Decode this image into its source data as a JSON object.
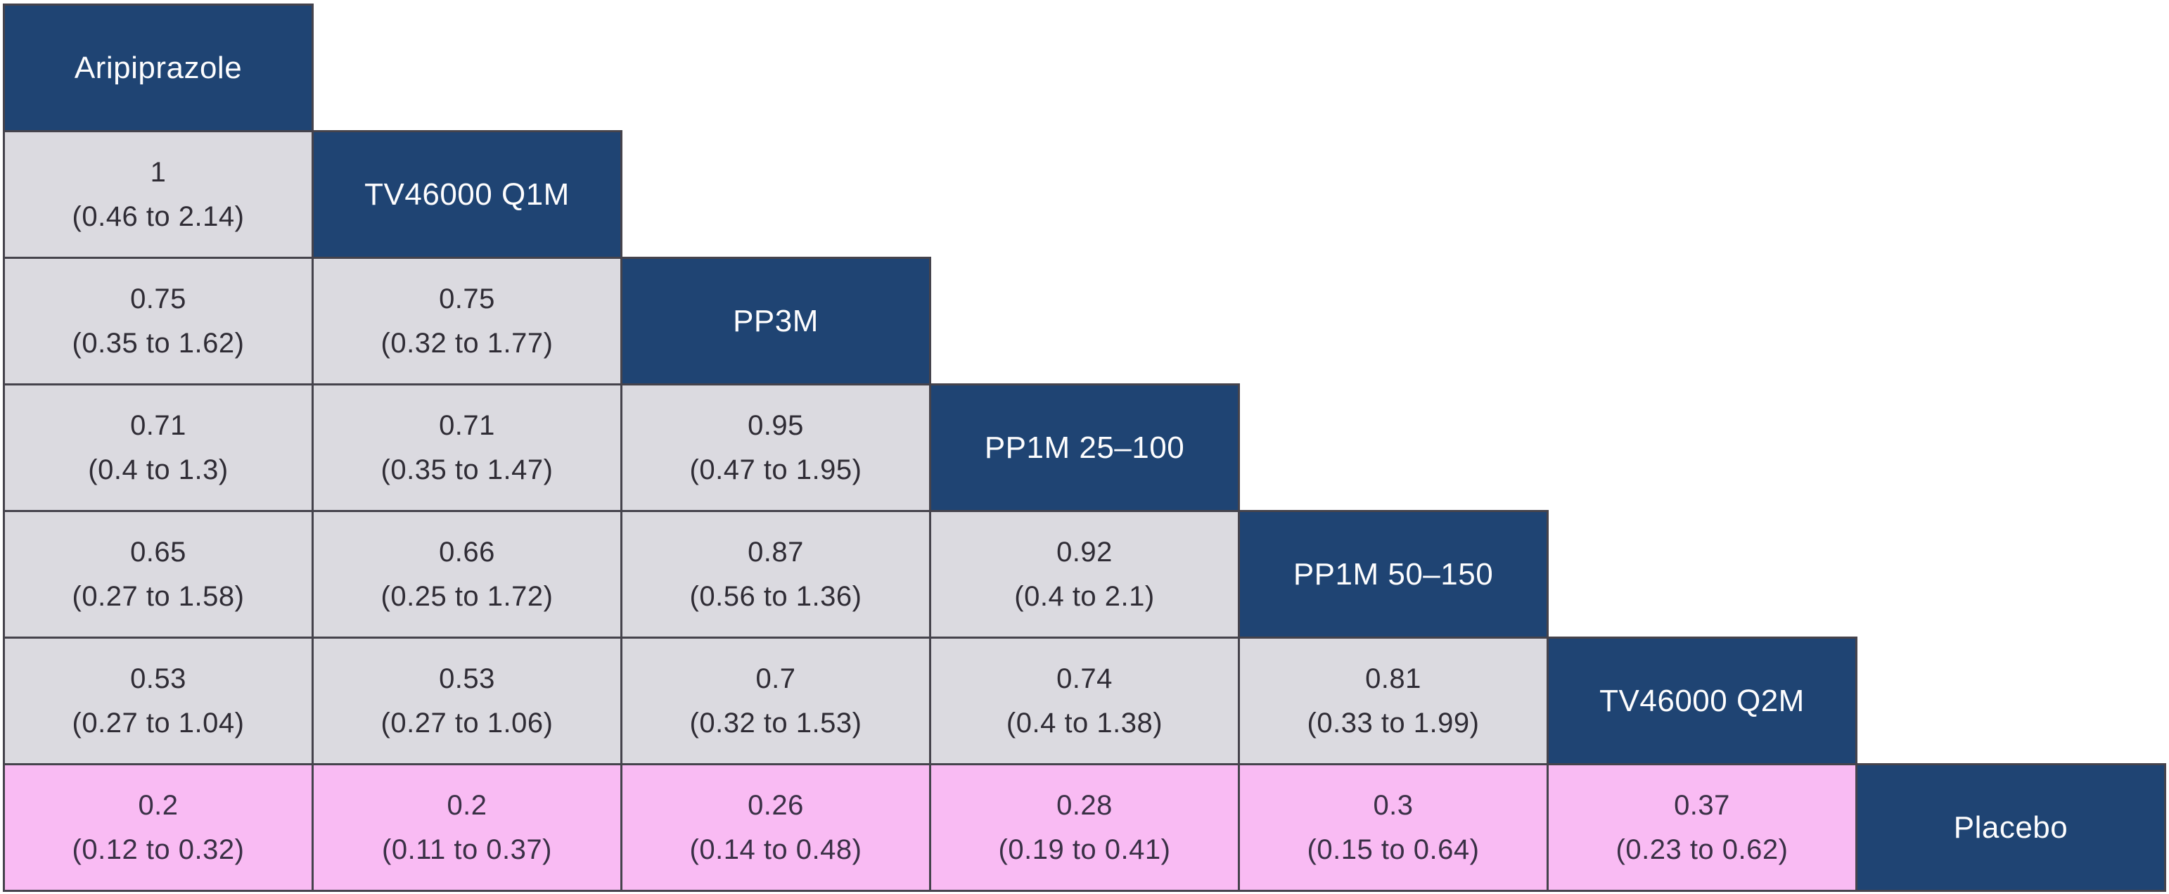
{
  "colors": {
    "header_bg": "#1F4473",
    "header_text": "#FDFDFE",
    "cell_bg": "#DBDAE0",
    "cell_text": "#2F2C35",
    "pink_bg": "#F9BBF3",
    "pink_text": "#3A3046",
    "border_color": "#45434C"
  },
  "league": {
    "treatments": [
      "Aripiprazole",
      "TV46000 Q1M",
      "PP3M",
      "PP1M 25–100",
      "PP1M 50–150",
      "TV46000 Q2M",
      "Placebo"
    ],
    "cells": {
      "r1c0": {
        "est": "1",
        "ci": "(0.46 to 2.14)"
      },
      "r2c0": {
        "est": "0.75",
        "ci": "(0.35 to 1.62)"
      },
      "r2c1": {
        "est": "0.75",
        "ci": "(0.32 to 1.77)"
      },
      "r3c0": {
        "est": "0.71",
        "ci": "(0.4 to 1.3)"
      },
      "r3c1": {
        "est": "0.71",
        "ci": "(0.35 to 1.47)"
      },
      "r3c2": {
        "est": "0.95",
        "ci": "(0.47 to 1.95)"
      },
      "r4c0": {
        "est": "0.65",
        "ci": "(0.27 to 1.58)"
      },
      "r4c1": {
        "est": "0.66",
        "ci": "(0.25 to 1.72)"
      },
      "r4c2": {
        "est": "0.87",
        "ci": "(0.56 to 1.36)"
      },
      "r4c3": {
        "est": "0.92",
        "ci": "(0.4 to 2.1)"
      },
      "r5c0": {
        "est": "0.53",
        "ci": "(0.27 to 1.04)"
      },
      "r5c1": {
        "est": "0.53",
        "ci": "(0.27 to 1.06)"
      },
      "r5c2": {
        "est": "0.7",
        "ci": "(0.32 to 1.53)"
      },
      "r5c3": {
        "est": "0.74",
        "ci": "(0.4 to 1.38)"
      },
      "r5c4": {
        "est": "0.81",
        "ci": "(0.33 to 1.99)"
      },
      "r6c0": {
        "est": "0.2",
        "ci": "(0.12 to 0.32)"
      },
      "r6c1": {
        "est": "0.2",
        "ci": "(0.11 to 0.37)"
      },
      "r6c2": {
        "est": "0.26",
        "ci": "(0.14 to 0.48)"
      },
      "r6c3": {
        "est": "0.28",
        "ci": "(0.19 to 0.41)"
      },
      "r6c4": {
        "est": "0.3",
        "ci": "(0.15 to 0.64)"
      },
      "r6c5": {
        "est": "0.37",
        "ci": "(0.23 to 0.62)"
      }
    }
  },
  "chart_data": {
    "type": "table",
    "subtype": "network-meta-analysis-league-table",
    "cell_format": "estimate (95% interval, lower to upper)",
    "diagonal_treatments": [
      "Aripiprazole",
      "TV46000 Q1M",
      "PP3M",
      "PP1M 25–100",
      "PP1M 50–150",
      "TV46000 Q2M",
      "Placebo"
    ],
    "layout": "lower-triangular matrix; treatment names on diagonal in dark blue; Placebo row highlighted pink",
    "comparisons": [
      {
        "row": "TV46000 Q1M",
        "column": "Aripiprazole",
        "estimate": 1,
        "ci_lower": 0.46,
        "ci_upper": 2.14
      },
      {
        "row": "PP3M",
        "column": "Aripiprazole",
        "estimate": 0.75,
        "ci_lower": 0.35,
        "ci_upper": 1.62
      },
      {
        "row": "PP3M",
        "column": "TV46000 Q1M",
        "estimate": 0.75,
        "ci_lower": 0.32,
        "ci_upper": 1.77
      },
      {
        "row": "PP1M 25–100",
        "column": "Aripiprazole",
        "estimate": 0.71,
        "ci_lower": 0.4,
        "ci_upper": 1.3
      },
      {
        "row": "PP1M 25–100",
        "column": "TV46000 Q1M",
        "estimate": 0.71,
        "ci_lower": 0.35,
        "ci_upper": 1.47
      },
      {
        "row": "PP1M 25–100",
        "column": "PP3M",
        "estimate": 0.95,
        "ci_lower": 0.47,
        "ci_upper": 1.95
      },
      {
        "row": "PP1M 50–150",
        "column": "Aripiprazole",
        "estimate": 0.65,
        "ci_lower": 0.27,
        "ci_upper": 1.58
      },
      {
        "row": "PP1M 50–150",
        "column": "TV46000 Q1M",
        "estimate": 0.66,
        "ci_lower": 0.25,
        "ci_upper": 1.72
      },
      {
        "row": "PP1M 50–150",
        "column": "PP3M",
        "estimate": 0.87,
        "ci_lower": 0.56,
        "ci_upper": 1.36
      },
      {
        "row": "PP1M 50–150",
        "column": "PP1M 25–100",
        "estimate": 0.92,
        "ci_lower": 0.4,
        "ci_upper": 2.1
      },
      {
        "row": "TV46000 Q2M",
        "column": "Aripiprazole",
        "estimate": 0.53,
        "ci_lower": 0.27,
        "ci_upper": 1.04
      },
      {
        "row": "TV46000 Q2M",
        "column": "TV46000 Q1M",
        "estimate": 0.53,
        "ci_lower": 0.27,
        "ci_upper": 1.06
      },
      {
        "row": "TV46000 Q2M",
        "column": "PP3M",
        "estimate": 0.7,
        "ci_lower": 0.32,
        "ci_upper": 1.53
      },
      {
        "row": "TV46000 Q2M",
        "column": "PP1M 25–100",
        "estimate": 0.74,
        "ci_lower": 0.4,
        "ci_upper": 1.38
      },
      {
        "row": "TV46000 Q2M",
        "column": "PP1M 50–150",
        "estimate": 0.81,
        "ci_lower": 0.33,
        "ci_upper": 1.99
      },
      {
        "row": "Placebo",
        "column": "Aripiprazole",
        "estimate": 0.2,
        "ci_lower": 0.12,
        "ci_upper": 0.32
      },
      {
        "row": "Placebo",
        "column": "TV46000 Q1M",
        "estimate": 0.2,
        "ci_lower": 0.11,
        "ci_upper": 0.37
      },
      {
        "row": "Placebo",
        "column": "PP3M",
        "estimate": 0.26,
        "ci_lower": 0.14,
        "ci_upper": 0.48
      },
      {
        "row": "Placebo",
        "column": "PP1M 25–100",
        "estimate": 0.28,
        "ci_lower": 0.19,
        "ci_upper": 0.41
      },
      {
        "row": "Placebo",
        "column": "PP1M 50–150",
        "estimate": 0.3,
        "ci_lower": 0.15,
        "ci_upper": 0.64
      },
      {
        "row": "Placebo",
        "column": "TV46000 Q2M",
        "estimate": 0.37,
        "ci_lower": 0.23,
        "ci_upper": 0.62
      }
    ]
  }
}
